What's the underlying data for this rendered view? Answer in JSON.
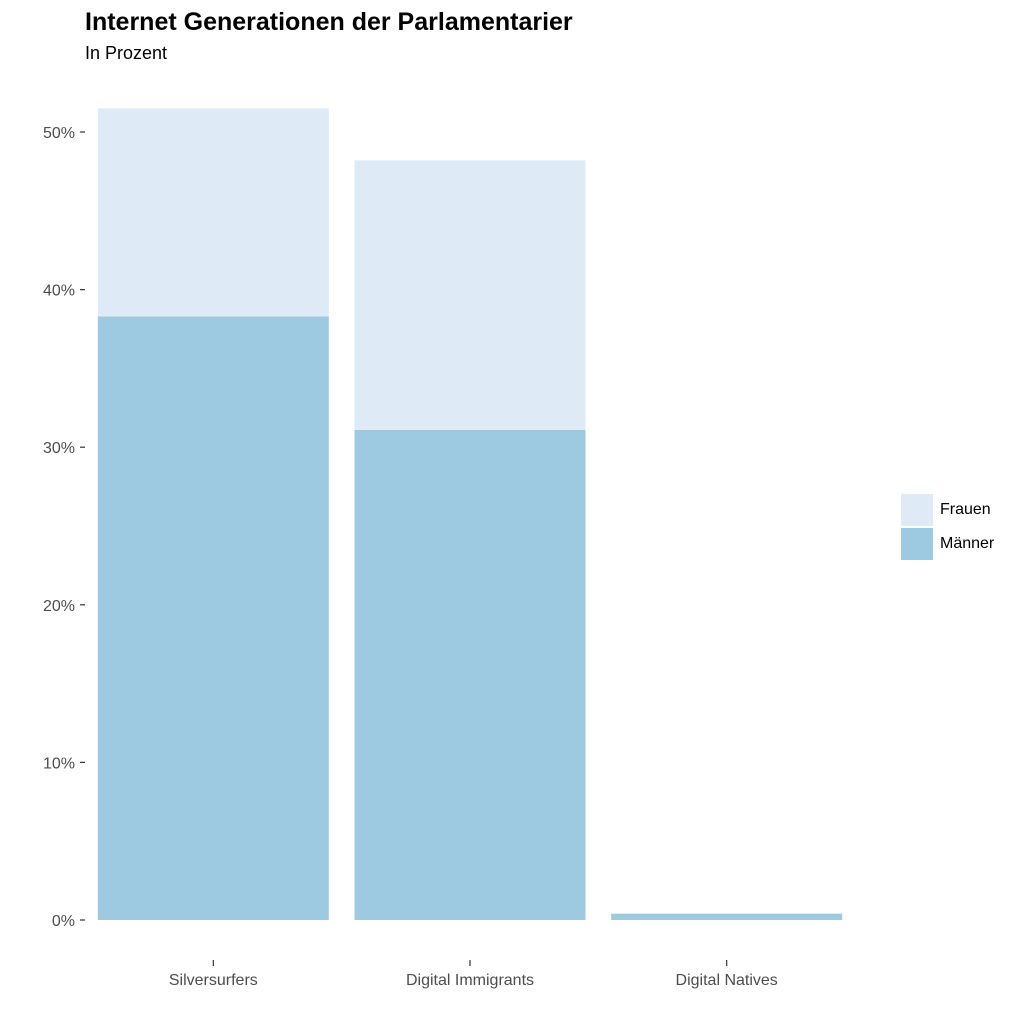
{
  "chart_data": {
    "type": "bar",
    "stacked": true,
    "title": "Internet Generationen der Parlamentarier",
    "subtitle": "In Prozent",
    "categories": [
      "Silversurfers",
      "Digital Immigrants",
      "Digital Natives"
    ],
    "series": [
      {
        "name": "Männer",
        "color": "#9ecae1",
        "values": [
          38.3,
          31.1,
          0.4
        ]
      },
      {
        "name": "Frauen",
        "color": "#deebf7",
        "values": [
          13.2,
          17.1,
          0.0
        ]
      }
    ],
    "ylim": [
      0,
      51.5
    ],
    "yticks": [
      0,
      10,
      20,
      30,
      40,
      50
    ],
    "ytick_labels": [
      "0%",
      "10%",
      "20%",
      "30%",
      "40%",
      "50%"
    ],
    "legend_position": "right",
    "legend_order": [
      "Frauen",
      "Männer"
    ],
    "grid": false
  }
}
